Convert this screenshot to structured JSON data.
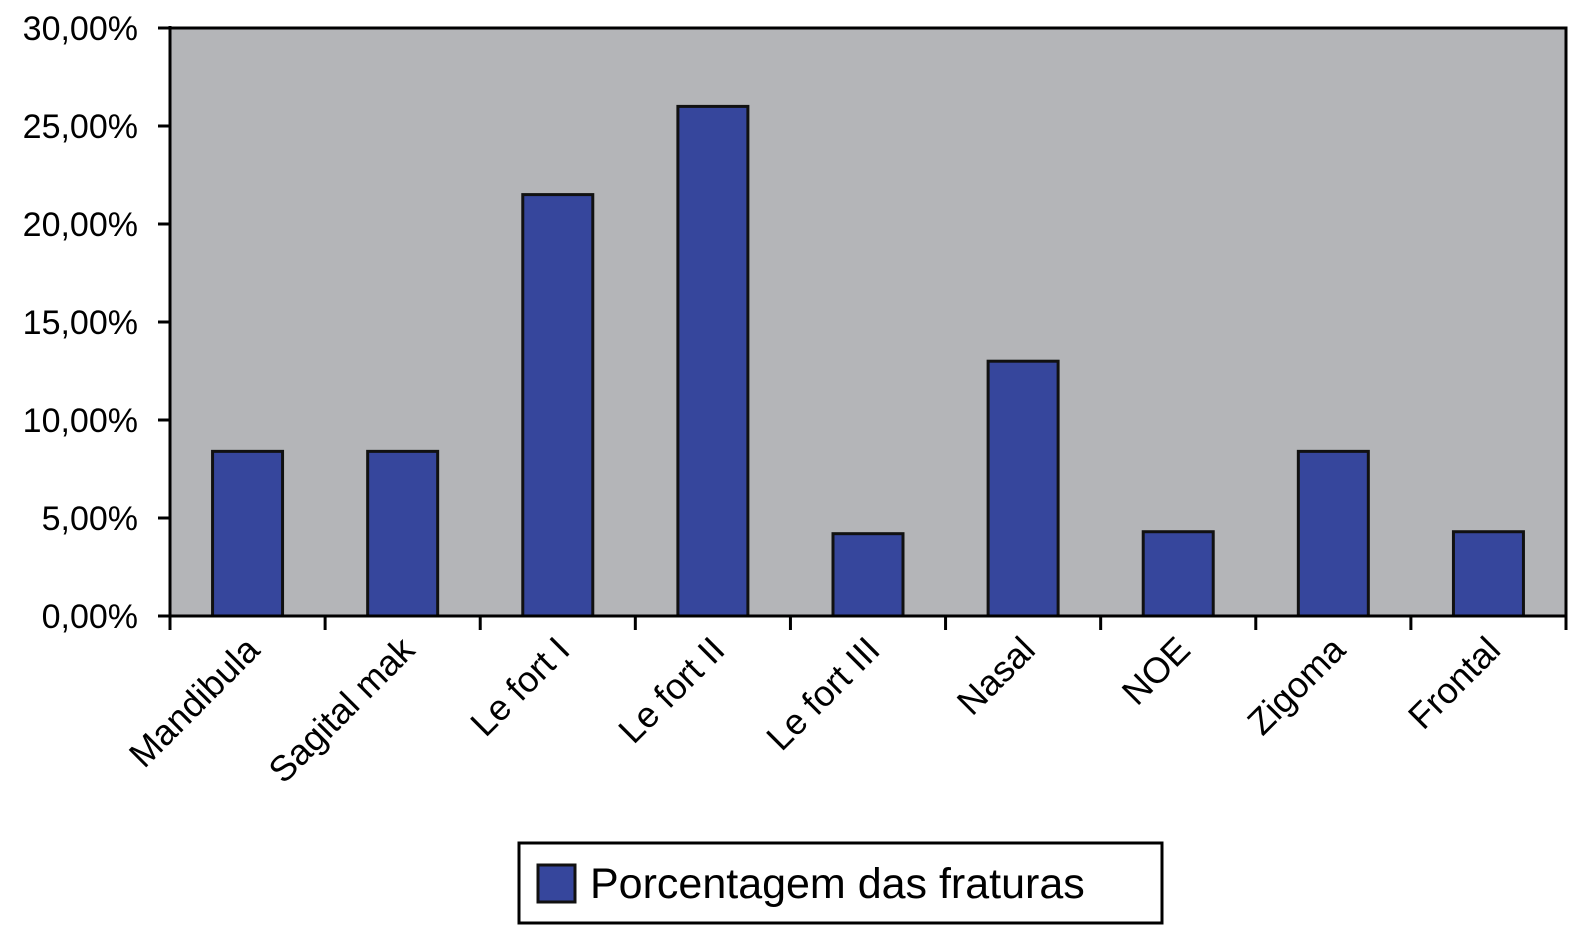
{
  "chart_data": {
    "type": "bar",
    "title": "",
    "xlabel": "",
    "ylabel": "",
    "categories": [
      "Mandibula",
      "Sagital mak",
      "Le fort I",
      "Le fort II",
      "Le fort III",
      "Nasal",
      "NOE",
      "Zigoma",
      "Frontal"
    ],
    "series": [
      {
        "name": "Porcentagem das fraturas",
        "values": [
          8.4,
          8.4,
          21.5,
          26.0,
          4.2,
          13.0,
          4.3,
          8.4,
          4.3
        ],
        "color": "#36469c"
      }
    ],
    "ylim": [
      0,
      30
    ],
    "yticks": [
      0,
      5,
      10,
      15,
      20,
      25,
      30
    ],
    "ytick_labels": [
      "0,00%",
      "5,00%",
      "10,00%",
      "15,00%",
      "20,00%",
      "25,00%",
      "30,00%"
    ],
    "plot_background": "#b4b5b8",
    "grid": false,
    "legend_position": "bottom-center"
  }
}
